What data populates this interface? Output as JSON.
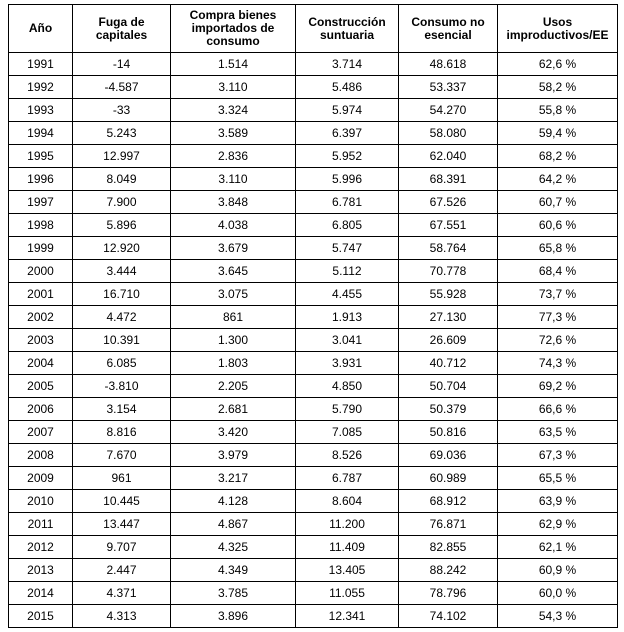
{
  "chart_data": {
    "type": "table",
    "title": "",
    "columns": [
      "Año",
      "Fuga de capitales",
      "Compra bienes importados de consumo",
      "Construcción suntuaria",
      "Consumo no esencial",
      "Usos improductivos/EE"
    ],
    "rows": [
      [
        "1991",
        "-14",
        "1.514",
        "3.714",
        "48.618",
        "62,6 %"
      ],
      [
        "1992",
        "-4.587",
        "3.110",
        "5.486",
        "53.337",
        "58,2 %"
      ],
      [
        "1993",
        "-33",
        "3.324",
        "5.974",
        "54.270",
        "55,8 %"
      ],
      [
        "1994",
        "5.243",
        "3.589",
        "6.397",
        "58.080",
        "59,4 %"
      ],
      [
        "1995",
        "12.997",
        "2.836",
        "5.952",
        "62.040",
        "68,2 %"
      ],
      [
        "1996",
        "8.049",
        "3.110",
        "5.996",
        "68.391",
        "64,2 %"
      ],
      [
        "1997",
        "7.900",
        "3.848",
        "6.781",
        "67.526",
        "60,7 %"
      ],
      [
        "1998",
        "5.896",
        "4.038",
        "6.805",
        "67.551",
        "60,6 %"
      ],
      [
        "1999",
        "12.920",
        "3.679",
        "5.747",
        "58.764",
        "65,8 %"
      ],
      [
        "2000",
        "3.444",
        "3.645",
        "5.112",
        "70.778",
        "68,4 %"
      ],
      [
        "2001",
        "16.710",
        "3.075",
        "4.455",
        "55.928",
        "73,7 %"
      ],
      [
        "2002",
        "4.472",
        "861",
        "1.913",
        "27.130",
        "77,3 %"
      ],
      [
        "2003",
        "10.391",
        "1.300",
        "3.041",
        "26.609",
        "72,6 %"
      ],
      [
        "2004",
        "6.085",
        "1.803",
        "3.931",
        "40.712",
        "74,3 %"
      ],
      [
        "2005",
        "-3.810",
        "2.205",
        "4.850",
        "50.704",
        "69,2 %"
      ],
      [
        "2006",
        "3.154",
        "2.681",
        "5.790",
        "50.379",
        "66,6 %"
      ],
      [
        "2007",
        "8.816",
        "3.420",
        "7.085",
        "50.816",
        "63,5 %"
      ],
      [
        "2008",
        "7.670",
        "3.979",
        "8.526",
        "69.036",
        "67,3 %"
      ],
      [
        "2009",
        "961",
        "3.217",
        "6.787",
        "60.989",
        "65,5 %"
      ],
      [
        "2010",
        "10.445",
        "4.128",
        "8.604",
        "68.912",
        "63,9 %"
      ],
      [
        "2011",
        "13.447",
        "4.867",
        "11.200",
        "76.871",
        "62,9 %"
      ],
      [
        "2012",
        "9.707",
        "4.325",
        "11.409",
        "82.855",
        "62,1 %"
      ],
      [
        "2013",
        "2.447",
        "4.349",
        "13.405",
        "88.242",
        "60,9 %"
      ],
      [
        "2014",
        "4.371",
        "3.785",
        "11.055",
        "78.796",
        "60,0 %"
      ],
      [
        "2015",
        "4.313",
        "3.896",
        "12.341",
        "74.102",
        "54,3 %"
      ]
    ],
    "layout": {
      "grid": true,
      "text_color": "#000000",
      "border_color": "#000000",
      "background": "#ffffff"
    }
  }
}
